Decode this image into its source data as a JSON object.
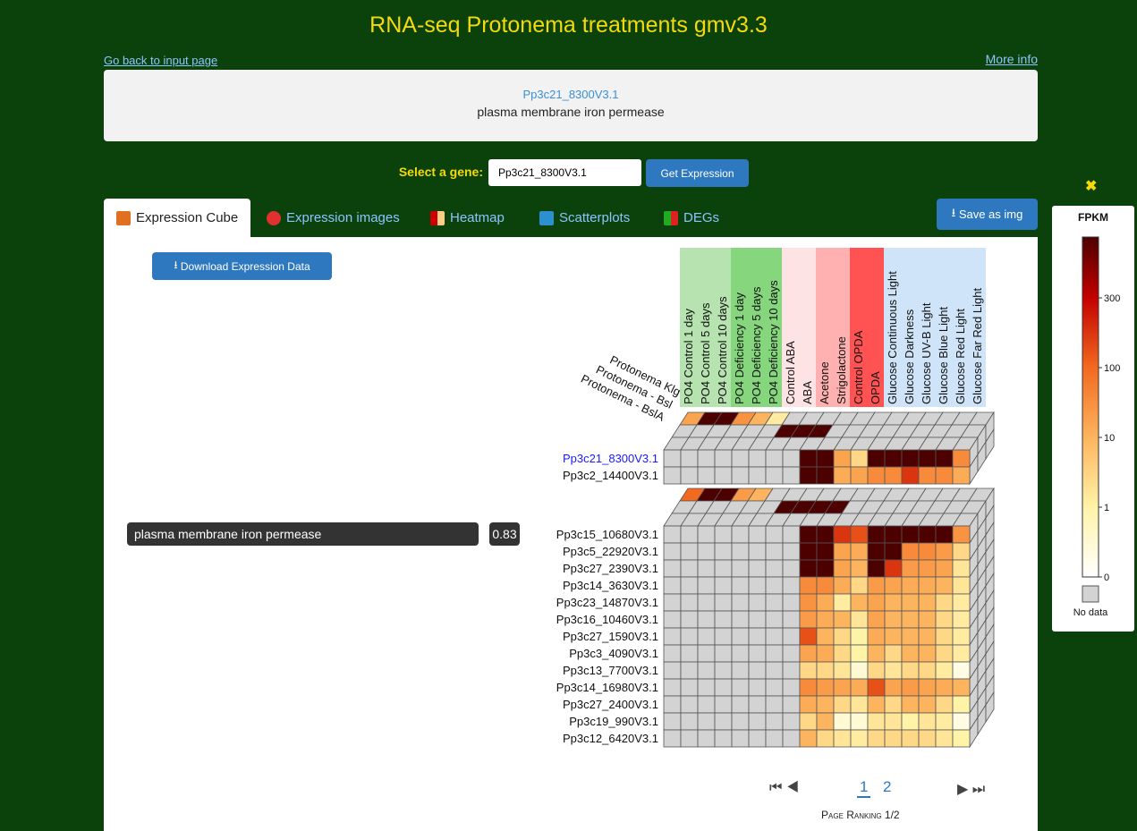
{
  "header": {
    "title": "RNA-seq Protonema treatments gmv3.3",
    "back_link": "Go back to input page",
    "more_info": "More info"
  },
  "gene_box": {
    "id": "Pp3c21_8300V3.1",
    "description": "plasma membrane iron permease"
  },
  "search": {
    "label": "Select a gene:",
    "input": "Pp3c21_8300V3.1",
    "button": "Get Expression"
  },
  "tabs": [
    "Expression Cube",
    "Expression images",
    "Heatmap",
    "Scatterplots",
    "DEGs"
  ],
  "save_button": "Save as img",
  "download_button": "Download Expression Data",
  "annotation": {
    "label": "plasma membrane iron permease",
    "score": 0.83
  },
  "chart_data": {
    "type": "heatmap-cube",
    "columns": [
      "PO4 Control 1 day",
      "PO4 Control 5 days",
      "PO4 Control 10 days",
      "PO4 Deficiency 1 day",
      "PO4 Deficiency 5 days",
      "PO4 Deficiency 10 days",
      "Control ABA",
      "ABA",
      "Acetone",
      "Strigolactone",
      "Control OPDA",
      "OPDA",
      "Glucose Continuous Light",
      "Glucose Darkness",
      "Glucose UV-B Light",
      "Glucose Blue Light",
      "Glucose Red Light",
      "Glucose Far Red Light"
    ],
    "column_colors": [
      "#b6e3b0",
      "#b6e3b0",
      "#b6e3b0",
      "#86d67e",
      "#86d67e",
      "#86d67e",
      "#fde3e3",
      "#fde3e3",
      "#ffb0b0",
      "#ffb0b0",
      "#ff5252",
      "#ff5252",
      "#cfe4f8",
      "#cfe4f8",
      "#cfe4f8",
      "#cfe4f8",
      "#cfe4f8",
      "#cfe4f8"
    ],
    "depth_labels": [
      "Protonema Klg",
      "Protonema - Bsl",
      "Protonema - BslA"
    ],
    "groups": [
      {
        "rows": [
          "Pp3c21_8300V3.1",
          "Pp3c2_14400V3.1"
        ],
        "values": [
          [
            null,
            null,
            null,
            null,
            null,
            null,
            null,
            null,
            400,
            400,
            30,
            5,
            400,
            400,
            400,
            400,
            400,
            60
          ],
          [
            null,
            null,
            null,
            null,
            null,
            null,
            null,
            null,
            400,
            400,
            20,
            30,
            60,
            60,
            200,
            60,
            60,
            20
          ]
        ],
        "top": [
          [
            30,
            400,
            400,
            50,
            10,
            2,
            null,
            null,
            null,
            null,
            null,
            null,
            null,
            null,
            null,
            null,
            null,
            null
          ],
          [
            null,
            null,
            null,
            null,
            null,
            null,
            400,
            400,
            300,
            null,
            null,
            null,
            null,
            null,
            null,
            null,
            null,
            null
          ],
          [
            null,
            null,
            null,
            null,
            null,
            null,
            null,
            null,
            null,
            null,
            null,
            null,
            null,
            null,
            null,
            null,
            null,
            null
          ]
        ]
      },
      {
        "rows": [
          "Pp3c15_10680V3.1",
          "Pp3c5_22920V3.1",
          "Pp3c27_2390V3.1",
          "Pp3c14_3630V3.1",
          "Pp3c23_14870V3.1",
          "Pp3c16_10460V3.1",
          "Pp3c27_1590V3.1",
          "Pp3c3_4090V3.1",
          "Pp3c13_7700V3.1",
          "Pp3c14_16980V3.1",
          "Pp3c27_2400V3.1",
          "Pp3c19_990V3.1",
          "Pp3c12_6420V3.1"
        ],
        "values": [
          [
            null,
            null,
            null,
            null,
            null,
            null,
            null,
            null,
            400,
            400,
            200,
            150,
            400,
            300,
            400,
            400,
            400,
            50
          ],
          [
            null,
            null,
            null,
            null,
            null,
            null,
            null,
            null,
            400,
            400,
            30,
            20,
            400,
            300,
            60,
            60,
            40,
            5
          ],
          [
            null,
            null,
            null,
            null,
            null,
            null,
            null,
            null,
            400,
            400,
            30,
            10,
            400,
            200,
            40,
            40,
            30,
            3
          ],
          [
            null,
            null,
            null,
            null,
            null,
            null,
            null,
            null,
            60,
            60,
            20,
            5,
            40,
            30,
            20,
            20,
            10,
            3
          ],
          [
            null,
            null,
            null,
            null,
            null,
            null,
            null,
            null,
            50,
            20,
            2,
            10,
            30,
            10,
            10,
            10,
            5,
            2
          ],
          [
            null,
            null,
            null,
            null,
            null,
            null,
            null,
            null,
            40,
            20,
            10,
            3,
            30,
            10,
            10,
            10,
            5,
            2
          ],
          [
            null,
            null,
            null,
            null,
            null,
            null,
            null,
            null,
            150,
            10,
            5,
            1,
            20,
            10,
            10,
            10,
            5,
            2
          ],
          [
            null,
            null,
            null,
            null,
            null,
            null,
            null,
            null,
            30,
            20,
            5,
            1,
            10,
            5,
            10,
            10,
            5,
            2
          ],
          [
            null,
            null,
            null,
            null,
            null,
            null,
            null,
            null,
            5,
            5,
            3,
            0.5,
            5,
            3,
            5,
            5,
            2,
            0.3
          ],
          [
            null,
            null,
            null,
            null,
            null,
            null,
            null,
            null,
            60,
            40,
            30,
            20,
            150,
            30,
            40,
            30,
            20,
            10
          ],
          [
            null,
            null,
            null,
            null,
            null,
            null,
            null,
            null,
            20,
            10,
            5,
            3,
            10,
            5,
            10,
            10,
            5,
            1
          ],
          [
            null,
            null,
            null,
            null,
            null,
            null,
            null,
            null,
            5,
            10,
            0.5,
            0.5,
            3,
            3,
            1,
            3,
            2,
            0.3
          ],
          [
            null,
            null,
            null,
            null,
            null,
            null,
            null,
            null,
            10,
            5,
            3,
            2,
            5,
            5,
            5,
            5,
            3,
            1
          ]
        ],
        "top": [
          [
            100,
            400,
            400,
            40,
            10,
            null,
            null,
            null,
            null,
            null,
            null,
            null,
            null,
            null,
            null,
            null,
            null,
            null
          ],
          [
            null,
            null,
            null,
            null,
            null,
            null,
            400,
            400,
            400,
            400,
            null,
            null,
            null,
            null,
            null,
            null,
            null,
            null
          ],
          [
            null,
            null,
            null,
            null,
            null,
            null,
            null,
            null,
            null,
            null,
            null,
            null,
            null,
            null,
            null,
            null,
            null,
            null
          ]
        ]
      }
    ],
    "legend": {
      "title": "FPKM",
      "ticks": [
        0,
        1,
        10,
        100,
        300
      ],
      "colors": [
        "#ffffff",
        "#fff3a8",
        "#fdb45e",
        "#f26a1f",
        "#c40000"
      ],
      "max_color": "#4d0000",
      "no_data_color": "#d3d3d3",
      "no_data": "No data"
    }
  },
  "pagination": {
    "pages": [
      1,
      2
    ],
    "caption": "Page Ranking 1/2"
  }
}
